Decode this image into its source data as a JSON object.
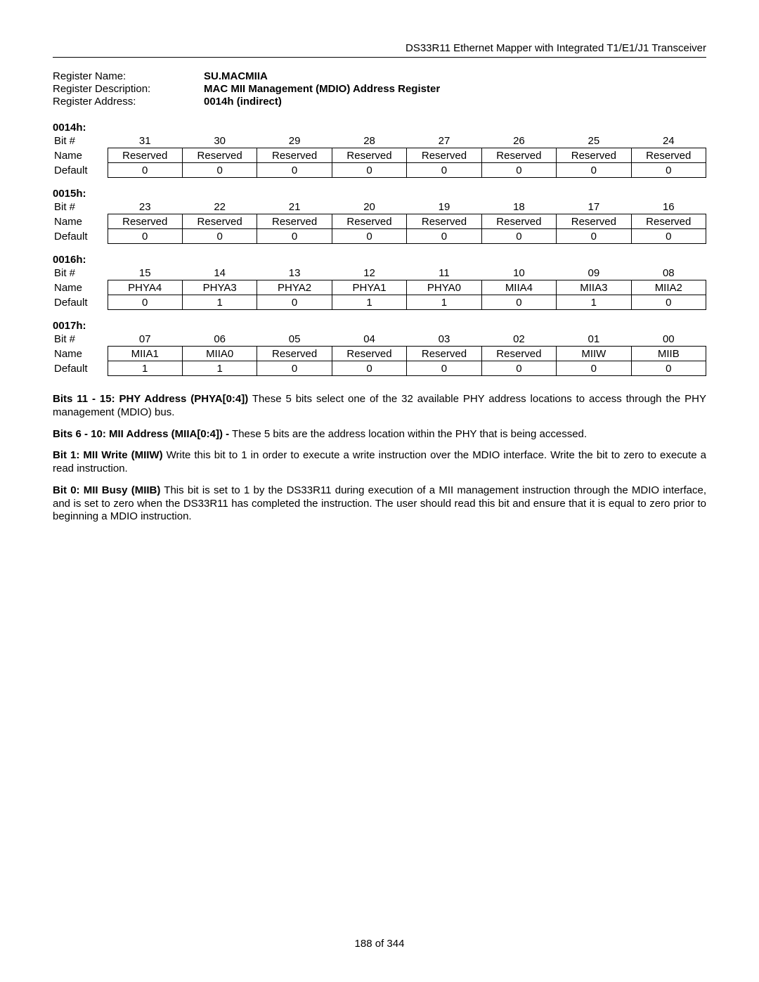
{
  "header": {
    "title": "DS33R11 Ethernet Mapper with Integrated T1/E1/J1 Transceiver"
  },
  "register": {
    "name_label": "Register Name:",
    "name_value": "SU.MACMIIA",
    "desc_label": "Register Description:",
    "desc_value": "MAC MII Management (MDIO) Address Register",
    "addr_label": "Register Address:",
    "addr_value": "0014h (indirect)"
  },
  "row_labels": {
    "bit": "Bit #",
    "name": "Name",
    "default": "Default"
  },
  "blocks": [
    {
      "addr": "0014h:",
      "bits": [
        "31",
        "30",
        "29",
        "28",
        "27",
        "26",
        "25",
        "24"
      ],
      "names": [
        "Reserved",
        "Reserved",
        "Reserved",
        "Reserved",
        "Reserved",
        "Reserved",
        "Reserved",
        "Reserved"
      ],
      "defaults": [
        "0",
        "0",
        "0",
        "0",
        "0",
        "0",
        "0",
        "0"
      ]
    },
    {
      "addr": "0015h:",
      "bits": [
        "23",
        "22",
        "21",
        "20",
        "19",
        "18",
        "17",
        "16"
      ],
      "names": [
        "Reserved",
        "Reserved",
        "Reserved",
        "Reserved",
        "Reserved",
        "Reserved",
        "Reserved",
        "Reserved"
      ],
      "defaults": [
        "0",
        "0",
        "0",
        "0",
        "0",
        "0",
        "0",
        "0"
      ]
    },
    {
      "addr": "0016h:",
      "bits": [
        "15",
        "14",
        "13",
        "12",
        "11",
        "10",
        "09",
        "08"
      ],
      "names": [
        "PHYA4",
        "PHYA3",
        "PHYA2",
        "PHYA1",
        "PHYA0",
        "MIIA4",
        "MIIA3",
        "MIIA2"
      ],
      "defaults": [
        "0",
        "1",
        "0",
        "1",
        "1",
        "0",
        "1",
        "0"
      ]
    },
    {
      "addr": "0017h:",
      "bits": [
        "07",
        "06",
        "05",
        "04",
        "03",
        "02",
        "01",
        "00"
      ],
      "names": [
        "MIIA1",
        "MIIA0",
        "Reserved",
        "Reserved",
        "Reserved",
        "Reserved",
        "MIIW",
        "MIIB"
      ],
      "defaults": [
        "1",
        "1",
        "0",
        "0",
        "0",
        "0",
        "0",
        "0"
      ]
    }
  ],
  "descriptions": [
    {
      "lead": "Bits 11 - 15: PHY Address (PHYA[0:4])",
      "body": " These 5 bits select one of the 32 available PHY address locations to access through the PHY management (MDIO) bus."
    },
    {
      "lead": "Bits 6 - 10: MII Address (MIIA[0:4]) -",
      "body": " These 5 bits are the address location within the PHY that is being accessed."
    },
    {
      "lead": "Bit 1: MII Write (MIIW)",
      "body": " Write this bit to 1 in order to execute a write instruction over the MDIO interface. Write the bit to zero to execute a read instruction."
    },
    {
      "lead": "Bit 0: MII Busy (MIIB)",
      "body": " This bit is set to 1 by the DS33R11 during execution of a MII management instruction through the MDIO interface, and is set to zero when the DS33R11 has completed the instruction. The user should read this bit and ensure that it is equal to zero prior to beginning a MDIO instruction."
    }
  ],
  "footer": {
    "page": "188 of 344"
  }
}
